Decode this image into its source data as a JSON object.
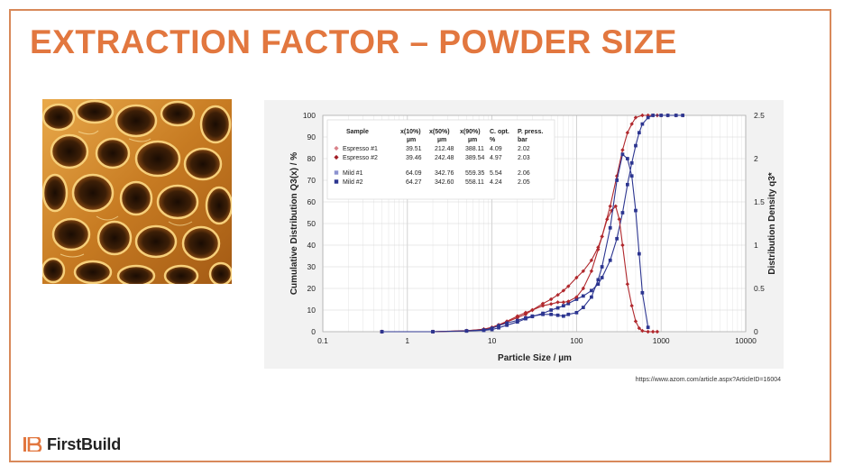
{
  "slide": {
    "title": "EXTRACTION FACTOR – POWDER SIZE",
    "source_url": "https://www.azom.com/article.aspx?ArticleID=16004",
    "logo_text": "FirstBuild",
    "colors": {
      "title": "#e2773f",
      "frame": "#d8895a",
      "espresso": "#b0282d",
      "mild": "#2c3590"
    }
  },
  "chart_data": {
    "type": "line",
    "x_scale": "log",
    "xlabel": "Particle Size / µm",
    "ylabel_left": "Cumulative Distribution Q3(x) / %",
    "ylabel_right": "Distribution Density q3*",
    "xlim": [
      0.1,
      10000
    ],
    "ylim_left": [
      0,
      100
    ],
    "ylim_right": [
      0,
      2.5
    ],
    "x_ticks": [
      0.1,
      1,
      10,
      100,
      1000,
      10000
    ],
    "x_tick_labels": [
      "0.1",
      "1",
      "10",
      "100",
      "1000",
      "10000"
    ],
    "y_ticks_left": [
      0,
      10,
      20,
      30,
      40,
      50,
      60,
      70,
      80,
      90,
      100
    ],
    "y_ticks_right": [
      0,
      0.5,
      1,
      1.5,
      2,
      2.5
    ],
    "y_tick_labels_right": [
      "0",
      "0.5",
      "1",
      "1.5",
      "2",
      "2.5"
    ],
    "grid": true,
    "legend_table": {
      "headers": [
        "Sample",
        "x(10%)",
        "x(50%)",
        "x(90%)",
        "C. opt.",
        "P. press."
      ],
      "units": [
        "",
        "µm",
        "µm",
        "µm",
        "%",
        "bar"
      ],
      "rows": [
        {
          "sample": "Espresso #1",
          "values": [
            "39.51",
            "212.48",
            "388.11",
            "4.09",
            "2.02"
          ],
          "color": "#d9828a",
          "marker": "diamond"
        },
        {
          "sample": "Espresso #2",
          "values": [
            "39.46",
            "242.48",
            "389.54",
            "4.97",
            "2.03"
          ],
          "color": "#a11d25",
          "marker": "diamond"
        },
        {
          "sample": "Mild #1",
          "values": [
            "64.09",
            "342.76",
            "559.35",
            "5.54",
            "2.06"
          ],
          "color": "#8c92cf",
          "marker": "square"
        },
        {
          "sample": "Mild #2",
          "values": [
            "64.27",
            "342.60",
            "558.11",
            "4.24",
            "2.05"
          ],
          "color": "#2c3590",
          "marker": "square"
        }
      ]
    },
    "series": [
      {
        "name": "Espresso #1 / #2 cumulative Q3",
        "axis": "left",
        "marker": "diamond",
        "color": "#b0282d",
        "x": [
          0.5,
          2,
          5,
          8,
          10,
          12,
          15,
          20,
          25,
          30,
          40,
          50,
          60,
          70,
          80,
          100,
          120,
          150,
          180,
          200,
          250,
          300,
          350,
          400,
          450,
          500,
          600,
          700,
          800,
          900,
          1000,
          1200,
          1500,
          1800
        ],
        "y": [
          0,
          0,
          0.5,
          1,
          2,
          3,
          4.5,
          6.5,
          8,
          10,
          13,
          15,
          17,
          19,
          21,
          25,
          28,
          33,
          39,
          44,
          58,
          72,
          84,
          92,
          96,
          99,
          100,
          100,
          100,
          100,
          100,
          100,
          100,
          100
        ]
      },
      {
        "name": "Mild #1 / #2 cumulative Q3",
        "axis": "left",
        "marker": "square",
        "color": "#2c3590",
        "x": [
          0.5,
          2,
          5,
          8,
          10,
          12,
          15,
          20,
          25,
          30,
          40,
          50,
          60,
          70,
          80,
          100,
          120,
          150,
          180,
          200,
          250,
          300,
          350,
          400,
          450,
          500,
          550,
          600,
          700,
          800,
          1000,
          1200,
          1500,
          1800
        ],
        "y": [
          0,
          0,
          0.3,
          0.6,
          1,
          1.8,
          3,
          4.5,
          6,
          7,
          8.5,
          10,
          11,
          12,
          13,
          15,
          16.5,
          19,
          22,
          25,
          33,
          43,
          55,
          68,
          78,
          86,
          92,
          96,
          99,
          100,
          100,
          100,
          100,
          100
        ]
      },
      {
        "name": "Espresso #1 / #2 density q3*",
        "axis": "right",
        "marker": "diamond",
        "color": "#b0282d",
        "x": [
          0.5,
          2,
          5,
          8,
          10,
          12,
          15,
          20,
          25,
          30,
          40,
          50,
          60,
          70,
          80,
          100,
          120,
          150,
          180,
          200,
          230,
          260,
          290,
          320,
          350,
          400,
          450,
          500,
          550,
          600,
          700,
          800,
          900
        ],
        "y": [
          0,
          0,
          0.01,
          0.03,
          0.05,
          0.08,
          0.12,
          0.18,
          0.22,
          0.25,
          0.3,
          0.32,
          0.34,
          0.34,
          0.35,
          0.4,
          0.5,
          0.7,
          0.95,
          1.1,
          1.3,
          1.4,
          1.45,
          1.3,
          1.0,
          0.55,
          0.3,
          0.12,
          0.04,
          0.01,
          0,
          0,
          0
        ]
      },
      {
        "name": "Mild #1 / #2 density q3*",
        "axis": "right",
        "marker": "square",
        "color": "#2c3590",
        "x": [
          0.5,
          2,
          5,
          8,
          10,
          12,
          15,
          20,
          25,
          30,
          40,
          50,
          60,
          70,
          80,
          100,
          120,
          150,
          180,
          200,
          250,
          300,
          350,
          400,
          450,
          500,
          550,
          600,
          700
        ],
        "y": [
          0,
          0,
          0.01,
          0.02,
          0.04,
          0.07,
          0.1,
          0.13,
          0.16,
          0.18,
          0.2,
          0.2,
          0.19,
          0.18,
          0.2,
          0.22,
          0.28,
          0.4,
          0.6,
          0.75,
          1.2,
          1.75,
          2.05,
          2.0,
          1.8,
          1.4,
          0.9,
          0.45,
          0.05
        ]
      }
    ]
  }
}
